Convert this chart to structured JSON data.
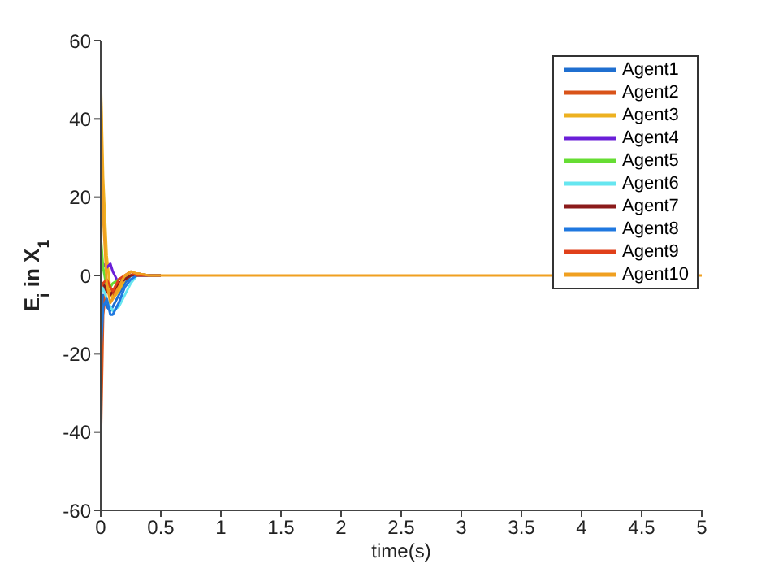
{
  "chart_data": {
    "type": "line",
    "xlabel": "time(s)",
    "ylabel": "E$_{i}$ in X$_{1}$",
    "x": [
      0,
      0.02,
      0.05,
      0.08,
      0.1,
      0.15,
      0.2,
      0.25,
      0.3,
      0.4,
      0.5,
      1,
      5
    ],
    "series": [
      {
        "name": "Agent1",
        "color": "#1f6fd0",
        "values": [
          -15,
          -5,
          -8,
          -9,
          -8,
          -5,
          -2,
          0,
          0.5,
          0,
          0,
          null,
          null
        ]
      },
      {
        "name": "Agent2",
        "color": "#d95319",
        "values": [
          -44,
          -10,
          -2,
          -4,
          -5,
          -2,
          -1,
          0,
          0.5,
          0,
          0,
          null,
          null
        ]
      },
      {
        "name": "Agent3",
        "color": "#edb120",
        "values": [
          51,
          25,
          5,
          -4,
          -6,
          -4,
          -1,
          1,
          0.5,
          0,
          0,
          null,
          null
        ]
      },
      {
        "name": "Agent4",
        "color": "#6a1fd8",
        "values": [
          4,
          3,
          2,
          3,
          1,
          -2,
          -1,
          0,
          null,
          null,
          null,
          null,
          null
        ]
      },
      {
        "name": "Agent5",
        "color": "#66dd33",
        "values": [
          10,
          2,
          -3,
          -3,
          -2,
          -1,
          -1,
          0,
          null,
          null,
          null,
          null,
          null
        ]
      },
      {
        "name": "Agent6",
        "color": "#66e6f0",
        "values": [
          -5,
          -3,
          -6,
          -8,
          -9,
          -8,
          -5,
          -2,
          0,
          0,
          0,
          null,
          null
        ]
      },
      {
        "name": "Agent7",
        "color": "#8b1a1a",
        "values": [
          -3,
          -2,
          -4,
          -5,
          -4,
          -2,
          -1,
          0,
          0,
          0,
          0,
          null,
          null
        ]
      },
      {
        "name": "Agent8",
        "color": "#1f78e0",
        "values": [
          -20,
          -8,
          -6,
          -10,
          -10,
          -7,
          -3,
          -1,
          0,
          0,
          0,
          null,
          null
        ]
      },
      {
        "name": "Agent9",
        "color": "#e0401a",
        "values": [
          -3,
          -2,
          -1,
          -3,
          -4,
          -1,
          0,
          1,
          0,
          0,
          0,
          null,
          null
        ]
      },
      {
        "name": "Agent10",
        "color": "#f0a020",
        "values": [
          51,
          15,
          -2,
          -7,
          -6,
          -3,
          0,
          1,
          0.5,
          0,
          0,
          0,
          0
        ]
      }
    ],
    "xlim": [
      0,
      5
    ],
    "xticks": [
      0,
      0.5,
      1,
      1.5,
      2,
      2.5,
      3,
      3.5,
      4,
      4.5,
      5
    ],
    "ylim": [
      -60,
      60
    ],
    "yticks": [
      -60,
      -40,
      -20,
      0,
      20,
      40,
      60
    ],
    "grid": false,
    "legend": "top right",
    "marker": "none",
    "line_style": "solid"
  }
}
